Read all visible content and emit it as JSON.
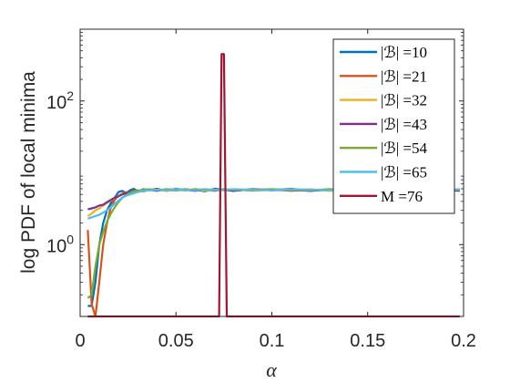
{
  "chart_data": {
    "type": "line",
    "title": "",
    "xlabel": "α",
    "ylabel": "log PDF of local minima",
    "xlim": [
      0,
      0.2
    ],
    "ylim": [
      0.1,
      1000
    ],
    "yscale": "log",
    "grid": false,
    "legend_position": "top-right",
    "x_ticks": [
      {
        "value": 0,
        "label": "0"
      },
      {
        "value": 0.05,
        "label": "0.05"
      },
      {
        "value": 0.1,
        "label": "0.1"
      },
      {
        "value": 0.15,
        "label": "0.15"
      },
      {
        "value": 0.2,
        "label": "0.2"
      }
    ],
    "y_ticks": [
      {
        "value": 1,
        "label": "10",
        "exponent": "0"
      },
      {
        "value": 100,
        "label": "10",
        "exponent": "2"
      }
    ],
    "series": [
      {
        "name": "|ℬ| =10",
        "color": "#0072BD",
        "x": [
          0.004,
          0.006,
          0.008,
          0.01,
          0.012,
          0.014,
          0.016,
          0.018,
          0.02,
          0.022,
          0.024,
          0.026,
          0.028,
          0.03,
          0.033,
          0.036,
          0.04,
          0.045,
          0.05,
          0.055,
          0.06,
          0.065,
          0.07,
          0.075,
          0.08,
          0.09,
          0.1,
          0.11,
          0.12,
          0.13,
          0.14,
          0.15,
          0.16,
          0.17,
          0.18,
          0.19,
          0.198
        ],
        "y": [
          0.14,
          0.14,
          0.3,
          1.0,
          2.0,
          3.0,
          3.8,
          4.5,
          5.4,
          5.6,
          5.2,
          5.7,
          6.0,
          5.5,
          5.9,
          5.7,
          6.0,
          5.6,
          6.0,
          5.7,
          5.9,
          5.5,
          6.0,
          5.8,
          5.6,
          5.9,
          5.7,
          6.0,
          5.6,
          5.8,
          5.9,
          5.6,
          6.0,
          5.7,
          5.8,
          5.6,
          5.9
        ]
      },
      {
        "name": "|ℬ| =21",
        "color": "#D95319",
        "x": [
          0.004,
          0.006,
          0.008,
          0.01,
          0.012,
          0.014,
          0.016,
          0.018,
          0.02,
          0.022,
          0.024,
          0.026,
          0.028,
          0.03,
          0.033,
          0.036,
          0.04,
          0.045,
          0.05,
          0.055,
          0.06,
          0.065,
          0.07,
          0.075,
          0.08,
          0.09,
          0.1,
          0.11,
          0.12,
          0.13,
          0.14,
          0.15,
          0.16,
          0.17,
          0.18,
          0.19,
          0.198
        ],
        "y": [
          1.6,
          0.15,
          0.1,
          0.3,
          1.0,
          2.0,
          3.3,
          4.2,
          4.8,
          5.1,
          5.4,
          5.3,
          5.6,
          5.7,
          5.5,
          5.8,
          5.9,
          5.6,
          5.8,
          5.9,
          5.7,
          5.9,
          5.6,
          5.9,
          5.7,
          5.8,
          5.9,
          5.6,
          5.8,
          5.7,
          5.9,
          5.6,
          5.8,
          5.7,
          5.9,
          5.6,
          5.8
        ]
      },
      {
        "name": "|ℬ| =32",
        "color": "#EDB120",
        "x": [
          0.004,
          0.006,
          0.008,
          0.01,
          0.012,
          0.014,
          0.016,
          0.018,
          0.02,
          0.022,
          0.024,
          0.026,
          0.028,
          0.03,
          0.033,
          0.036,
          0.04,
          0.045,
          0.05,
          0.055,
          0.06,
          0.065,
          0.07,
          0.075,
          0.08,
          0.09,
          0.1,
          0.11,
          0.12,
          0.13,
          0.14,
          0.15,
          0.16,
          0.17,
          0.18,
          0.19,
          0.198
        ],
        "y": [
          2.5,
          2.7,
          3.0,
          3.2,
          3.5,
          3.8,
          4.1,
          4.5,
          4.8,
          5.0,
          5.2,
          5.3,
          5.4,
          5.5,
          5.6,
          5.7,
          5.8,
          5.6,
          5.8,
          5.7,
          5.9,
          5.6,
          5.8,
          5.7,
          5.9,
          5.6,
          5.8,
          5.7,
          5.9,
          5.6,
          5.8,
          5.7,
          5.9,
          5.6,
          5.8,
          5.7,
          5.9
        ]
      },
      {
        "name": "|ℬ| =43",
        "color": "#7E2F8E",
        "x": [
          0.004,
          0.006,
          0.008,
          0.01,
          0.012,
          0.014,
          0.016,
          0.018,
          0.02,
          0.022,
          0.024,
          0.026,
          0.028,
          0.03,
          0.033,
          0.036,
          0.04,
          0.045,
          0.05,
          0.055,
          0.06,
          0.065,
          0.07,
          0.075,
          0.08,
          0.09,
          0.1,
          0.11,
          0.12,
          0.13,
          0.14,
          0.15,
          0.16,
          0.17,
          0.18,
          0.19,
          0.198
        ],
        "y": [
          3.1,
          3.2,
          3.3,
          3.5,
          3.6,
          3.9,
          4.2,
          4.5,
          4.7,
          5.0,
          5.2,
          5.3,
          5.5,
          5.6,
          5.7,
          5.8,
          5.6,
          5.9,
          5.7,
          5.8,
          5.6,
          5.9,
          5.7,
          5.8,
          5.6,
          5.9,
          5.7,
          5.8,
          5.6,
          5.9,
          5.7,
          5.8,
          5.6,
          5.9,
          5.7,
          5.8,
          5.6
        ]
      },
      {
        "name": "|ℬ| =54",
        "color": "#77AC30",
        "x": [
          0.004,
          0.006,
          0.008,
          0.01,
          0.012,
          0.014,
          0.016,
          0.018,
          0.02,
          0.022,
          0.024,
          0.026,
          0.028,
          0.03,
          0.033,
          0.036,
          0.04,
          0.045,
          0.05,
          0.055,
          0.06,
          0.065,
          0.07,
          0.075,
          0.08,
          0.09,
          0.1,
          0.11,
          0.12,
          0.13,
          0.14,
          0.15,
          0.16,
          0.17,
          0.18,
          0.19,
          0.198
        ],
        "y": [
          0.18,
          0.2,
          0.5,
          1.0,
          1.5,
          2.1,
          2.7,
          3.3,
          3.9,
          4.5,
          4.9,
          5.2,
          5.5,
          5.6,
          5.8,
          5.9,
          5.7,
          5.9,
          5.8,
          5.7,
          5.9,
          5.8,
          5.7,
          5.9,
          5.8,
          5.7,
          5.9,
          5.8,
          5.7,
          5.9,
          5.8,
          5.7,
          5.9,
          5.8,
          5.7,
          5.9,
          5.8
        ]
      },
      {
        "name": "|ℬ| =65",
        "color": "#4DBEEE",
        "x": [
          0.004,
          0.006,
          0.008,
          0.01,
          0.012,
          0.014,
          0.016,
          0.018,
          0.02,
          0.022,
          0.024,
          0.026,
          0.028,
          0.03,
          0.033,
          0.036,
          0.04,
          0.045,
          0.05,
          0.055,
          0.06,
          0.065,
          0.07,
          0.075,
          0.08,
          0.09,
          0.1,
          0.11,
          0.12,
          0.13,
          0.14,
          0.15,
          0.16,
          0.17,
          0.18,
          0.19,
          0.198
        ],
        "y": [
          2.3,
          2.4,
          2.5,
          2.6,
          2.8,
          3.0,
          3.3,
          3.7,
          4.1,
          4.5,
          4.8,
          5.0,
          5.2,
          5.4,
          5.6,
          5.7,
          5.8,
          5.7,
          5.9,
          5.8,
          5.7,
          5.9,
          5.8,
          5.7,
          5.9,
          5.8,
          5.7,
          5.9,
          5.8,
          5.7,
          5.9,
          5.8,
          5.7,
          5.9,
          5.8,
          5.7,
          5.9
        ]
      },
      {
        "name": "M =76",
        "color": "#A2142F",
        "x": [
          0.004,
          0.02,
          0.04,
          0.06,
          0.0725,
          0.0738,
          0.075,
          0.0765,
          0.09,
          0.12,
          0.15,
          0.18,
          0.198
        ],
        "y": [
          0.1,
          0.1,
          0.1,
          0.1,
          0.1,
          450,
          450,
          0.1,
          0.1,
          0.1,
          0.1,
          0.1,
          0.1
        ]
      }
    ]
  }
}
